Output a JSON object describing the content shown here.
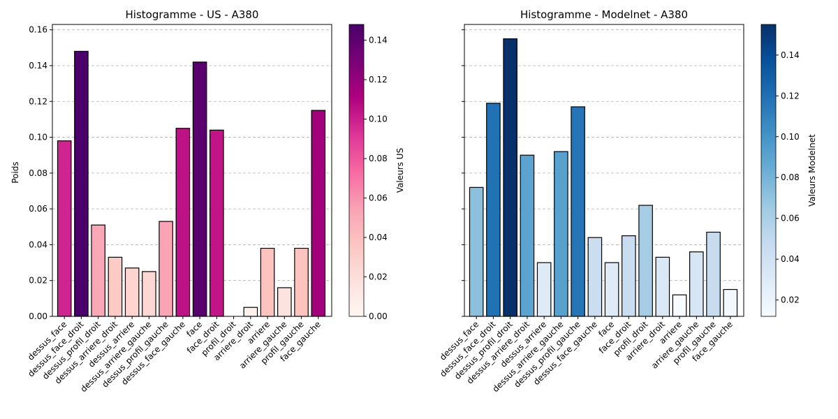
{
  "chart_data": [
    {
      "type": "bar",
      "title": "Histogramme - US - A380",
      "xlabel": "",
      "ylabel": "Poids",
      "ylim": [
        0,
        0.163
      ],
      "yticks": [
        "0.00",
        "0.02",
        "0.04",
        "0.06",
        "0.08",
        "0.10",
        "0.12",
        "0.14",
        "0.16"
      ],
      "grid": "horizontal dashed",
      "categories": [
        "dessus_face",
        "dessus_face_droit",
        "dessus_profil_droit",
        "dessus_arriere_droit",
        "dessus_arriere",
        "dessus_arriere_gauche",
        "dessus_profil_gauche",
        "dessus_face_gauche",
        "face",
        "face_droit",
        "profil_droit",
        "arriere_droit",
        "arriere",
        "arriere_gauche",
        "profil_gauche",
        "face_gauche"
      ],
      "values": [
        0.098,
        0.148,
        0.051,
        0.033,
        0.027,
        0.025,
        0.053,
        0.105,
        0.142,
        0.104,
        0.0,
        0.005,
        0.038,
        0.016,
        0.038,
        0.115
      ],
      "colorbar": {
        "label": "Valeurs US",
        "colormap": "RdPu",
        "range": [
          0,
          0.148
        ],
        "ticks": [
          "0.00",
          "0.02",
          "0.04",
          "0.06",
          "0.08",
          "0.10",
          "0.12",
          "0.14"
        ]
      }
    },
    {
      "type": "bar",
      "title": "Histogramme - Modelnet - A380",
      "xlabel": "",
      "ylabel": "",
      "ylim": [
        0,
        0.163
      ],
      "shared_y": true,
      "grid": "horizontal dashed",
      "categories": [
        "dessus_face",
        "dessus_face_droit",
        "dessus_profil_droit",
        "dessus_arriere_droit",
        "dessus_arriere",
        "dessus_arriere_gauche",
        "dessus_profil_gauche",
        "dessus_face_gauche",
        "face",
        "face_droit",
        "profil_droit",
        "arriere_droit",
        "arriere",
        "arriere_gauche",
        "profil_gauche",
        "face_gauche"
      ],
      "values": [
        0.072,
        0.119,
        0.155,
        0.09,
        0.03,
        0.092,
        0.117,
        0.044,
        0.03,
        0.045,
        0.062,
        0.033,
        0.012,
        0.036,
        0.047,
        0.015
      ],
      "colorbar": {
        "label": "Valeurs Modelnet",
        "colormap": "Blues",
        "range": [
          0.012,
          0.155
        ],
        "ticks": [
          "0.02",
          "0.04",
          "0.06",
          "0.08",
          "0.10",
          "0.12",
          "0.14"
        ]
      }
    }
  ]
}
